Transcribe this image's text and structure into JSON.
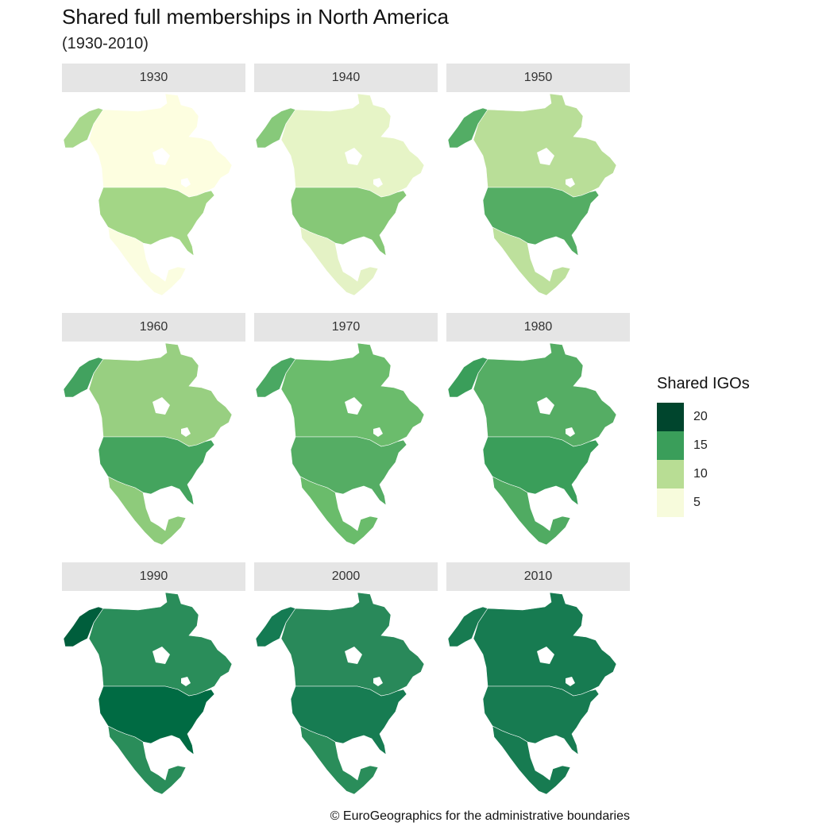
{
  "title": "Shared full memberships in North America",
  "subtitle": "(1930-2010)",
  "caption": "© EuroGeographics for the administrative boundaries",
  "legend": {
    "title": "Shared IGOs",
    "items": [
      {
        "label": "20",
        "color": "#00452d"
      },
      {
        "label": "15",
        "color": "#3a9e5a"
      },
      {
        "label": "10",
        "color": "#b8dd94"
      },
      {
        "label": "5",
        "color": "#f7fbdc"
      }
    ]
  },
  "panels": [
    {
      "year": "1930",
      "alaska": "#a8d88c",
      "canada": "#fdfee0",
      "usa": "#a3d686",
      "mexico": "#fbfde0"
    },
    {
      "year": "1940",
      "alaska": "#87c97a",
      "canada": "#e6f4c6",
      "usa": "#86c877",
      "mexico": "#e4f2c5"
    },
    {
      "year": "1950",
      "alaska": "#53ad65",
      "canada": "#b9de98",
      "usa": "#54ad64",
      "mexico": "#bde09c"
    },
    {
      "year": "1960",
      "alaska": "#42a25f",
      "canada": "#98cf81",
      "usa": "#44a45e",
      "mexico": "#8ecb7b"
    },
    {
      "year": "1970",
      "alaska": "#4aa862",
      "canada": "#6bbc6c",
      "usa": "#55ad64",
      "mexico": "#6abc6b"
    },
    {
      "year": "1980",
      "alaska": "#3a9e5a",
      "canada": "#55ad64",
      "usa": "#3a9e5a",
      "mexico": "#50ab62"
    },
    {
      "year": "1990",
      "alaska": "#005e3c",
      "canada": "#2a8d5a",
      "usa": "#006b43",
      "mexico": "#2a8d5a"
    },
    {
      "year": "2000",
      "alaska": "#157b53",
      "canada": "#29895a",
      "usa": "#177c52",
      "mexico": "#2a8d5a"
    },
    {
      "year": "2010",
      "alaska": "#177b51",
      "canada": "#177b51",
      "usa": "#177b51",
      "mexico": "#177b51"
    }
  ]
}
